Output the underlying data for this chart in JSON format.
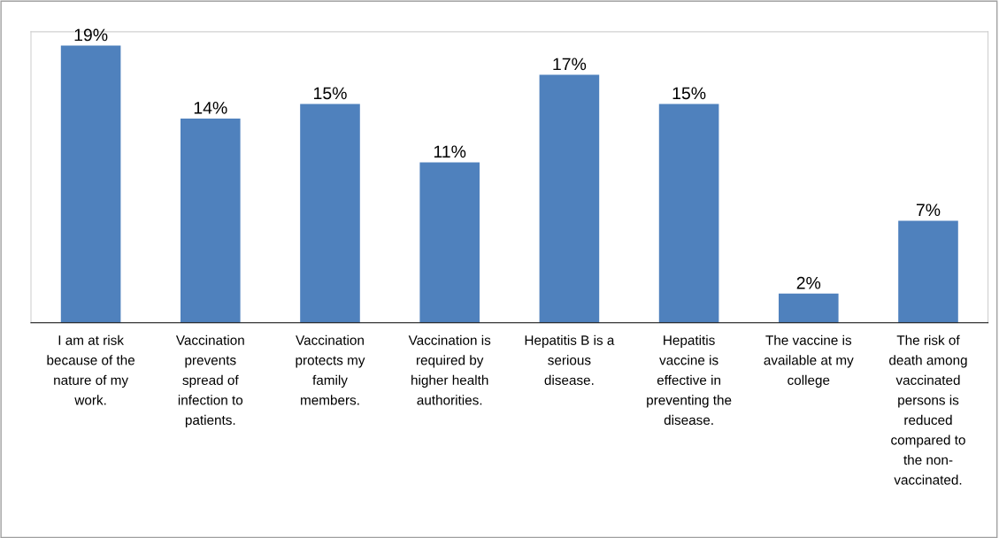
{
  "chart_data": {
    "type": "bar",
    "categories": [
      "I am at risk\nbecause of the\nnature of my\nwork.",
      "Vaccination\nprevents\nspread of\ninfection to\npatients.",
      "Vaccination\nprotects my\nfamily\nmembers.",
      "Vaccination is\nrequired by\nhigher health\nauthorities.",
      "Hepatitis B is a\nserious\ndisease.",
      "Hepatitis\nvaccine is\neffective in\npreventing the\ndisease.",
      "The vaccine is\navailable at my\ncollege",
      "The risk of\ndeath among\nvaccinated\npersons is\nreduced\ncompared to\nthe non-\nvaccinated."
    ],
    "values": [
      19,
      14,
      15,
      11,
      17,
      15,
      2,
      7
    ],
    "value_labels": [
      "19%",
      "14%",
      "15%",
      "11%",
      "17%",
      "15%",
      "2%",
      "7%"
    ],
    "color": "#4f81bd",
    "grid": false,
    "legend": false
  }
}
